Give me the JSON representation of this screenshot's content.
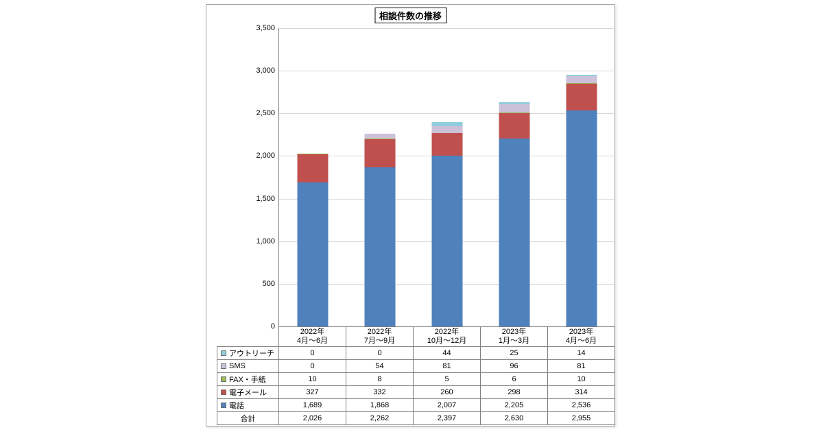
{
  "chart_data": {
    "type": "bar",
    "stacked": true,
    "title": "相談件数の推移",
    "categories": [
      [
        "2022年",
        "4月〜6月"
      ],
      [
        "2022年",
        "7月〜9月"
      ],
      [
        "2022年",
        "10月〜12月"
      ],
      [
        "2023年",
        "1月〜3月"
      ],
      [
        "2023年",
        "4月〜6月"
      ]
    ],
    "series": [
      {
        "name": "電話",
        "color": "#4f81bd",
        "values": [
          1689,
          1868,
          2007,
          2205,
          2536
        ]
      },
      {
        "name": "電子メール",
        "color": "#c0504d",
        "values": [
          327,
          332,
          260,
          298,
          314
        ]
      },
      {
        "name": "FAX・手紙",
        "color": "#9bbb59",
        "values": [
          10,
          8,
          5,
          6,
          10
        ]
      },
      {
        "name": "SMS",
        "color": "#ccc1d9",
        "values": [
          0,
          54,
          81,
          96,
          81
        ]
      },
      {
        "name": "アウトリーチ",
        "color": "#92cddc",
        "values": [
          0,
          0,
          44,
          25,
          14
        ]
      }
    ],
    "totals": {
      "label": "合計",
      "values": [
        2026,
        2262,
        2397,
        2630,
        2955
      ]
    },
    "xlabel": "",
    "ylabel": "",
    "ylim": [
      0,
      3500
    ],
    "y_tick_step": 500,
    "y_ticks": [
      "3,500",
      "3,000",
      "2,500",
      "2,000",
      "1,500",
      "1,000",
      "500",
      "0"
    ],
    "grid": true,
    "legend_position": "data-table-left",
    "table_row_order": [
      "アウトリーチ",
      "SMS",
      "FAX・手紙",
      "電子メール",
      "電話",
      "合計"
    ],
    "colors": {
      "gridline": "#d6d6d6",
      "axis": "#808080",
      "table_border": "#808080",
      "panel_border": "#a6a6a6",
      "text": "#000000"
    }
  }
}
